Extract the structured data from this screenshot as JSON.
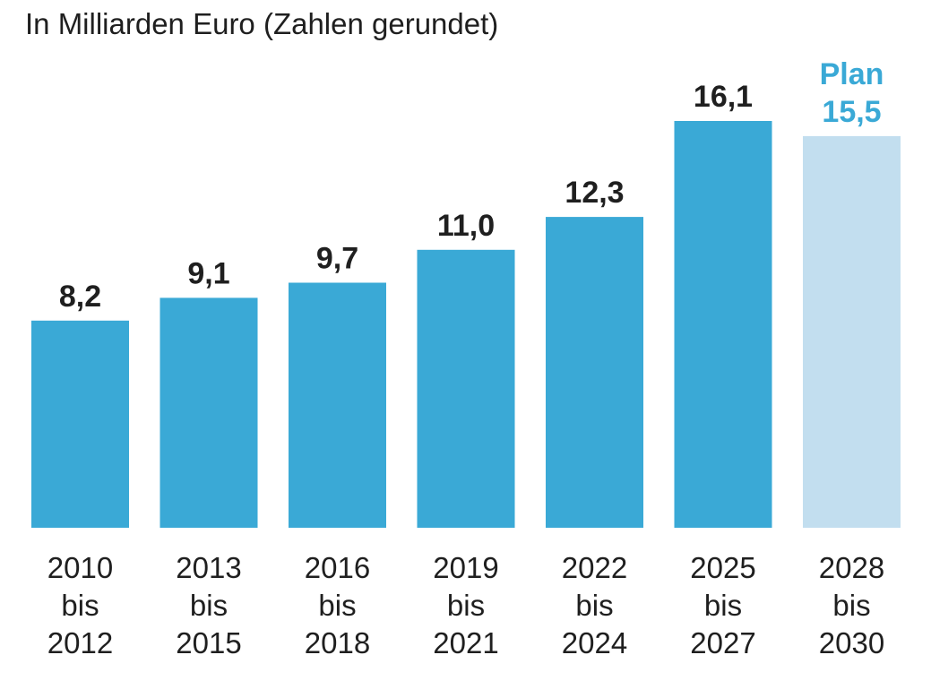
{
  "chart_data": {
    "type": "bar",
    "title": "In Milliarden Euro (Zahlen gerundet)",
    "categories": [
      [
        "2010",
        "bis",
        "2012"
      ],
      [
        "2013",
        "bis",
        "2015"
      ],
      [
        "2016",
        "bis",
        "2018"
      ],
      [
        "2019",
        "bis",
        "2021"
      ],
      [
        "2022",
        "bis",
        "2024"
      ],
      [
        "2025",
        "bis",
        "2027"
      ],
      [
        "2028",
        "bis",
        "2030"
      ]
    ],
    "values": [
      8.2,
      9.1,
      9.7,
      11.0,
      12.3,
      16.1,
      15.5
    ],
    "value_labels": [
      "8,2",
      "9,1",
      "9,7",
      "11,0",
      "12,3",
      "16,1",
      "15,5"
    ],
    "planned": [
      false,
      false,
      false,
      false,
      false,
      false,
      true
    ],
    "plan_label": "Plan",
    "ylim": [
      0,
      17
    ],
    "grid": false,
    "colors": {
      "actual": "#3aa9d6",
      "planned": "#c2deef",
      "plan_text": "#3aa9d6",
      "label_text": "#1f1f1f"
    }
  }
}
